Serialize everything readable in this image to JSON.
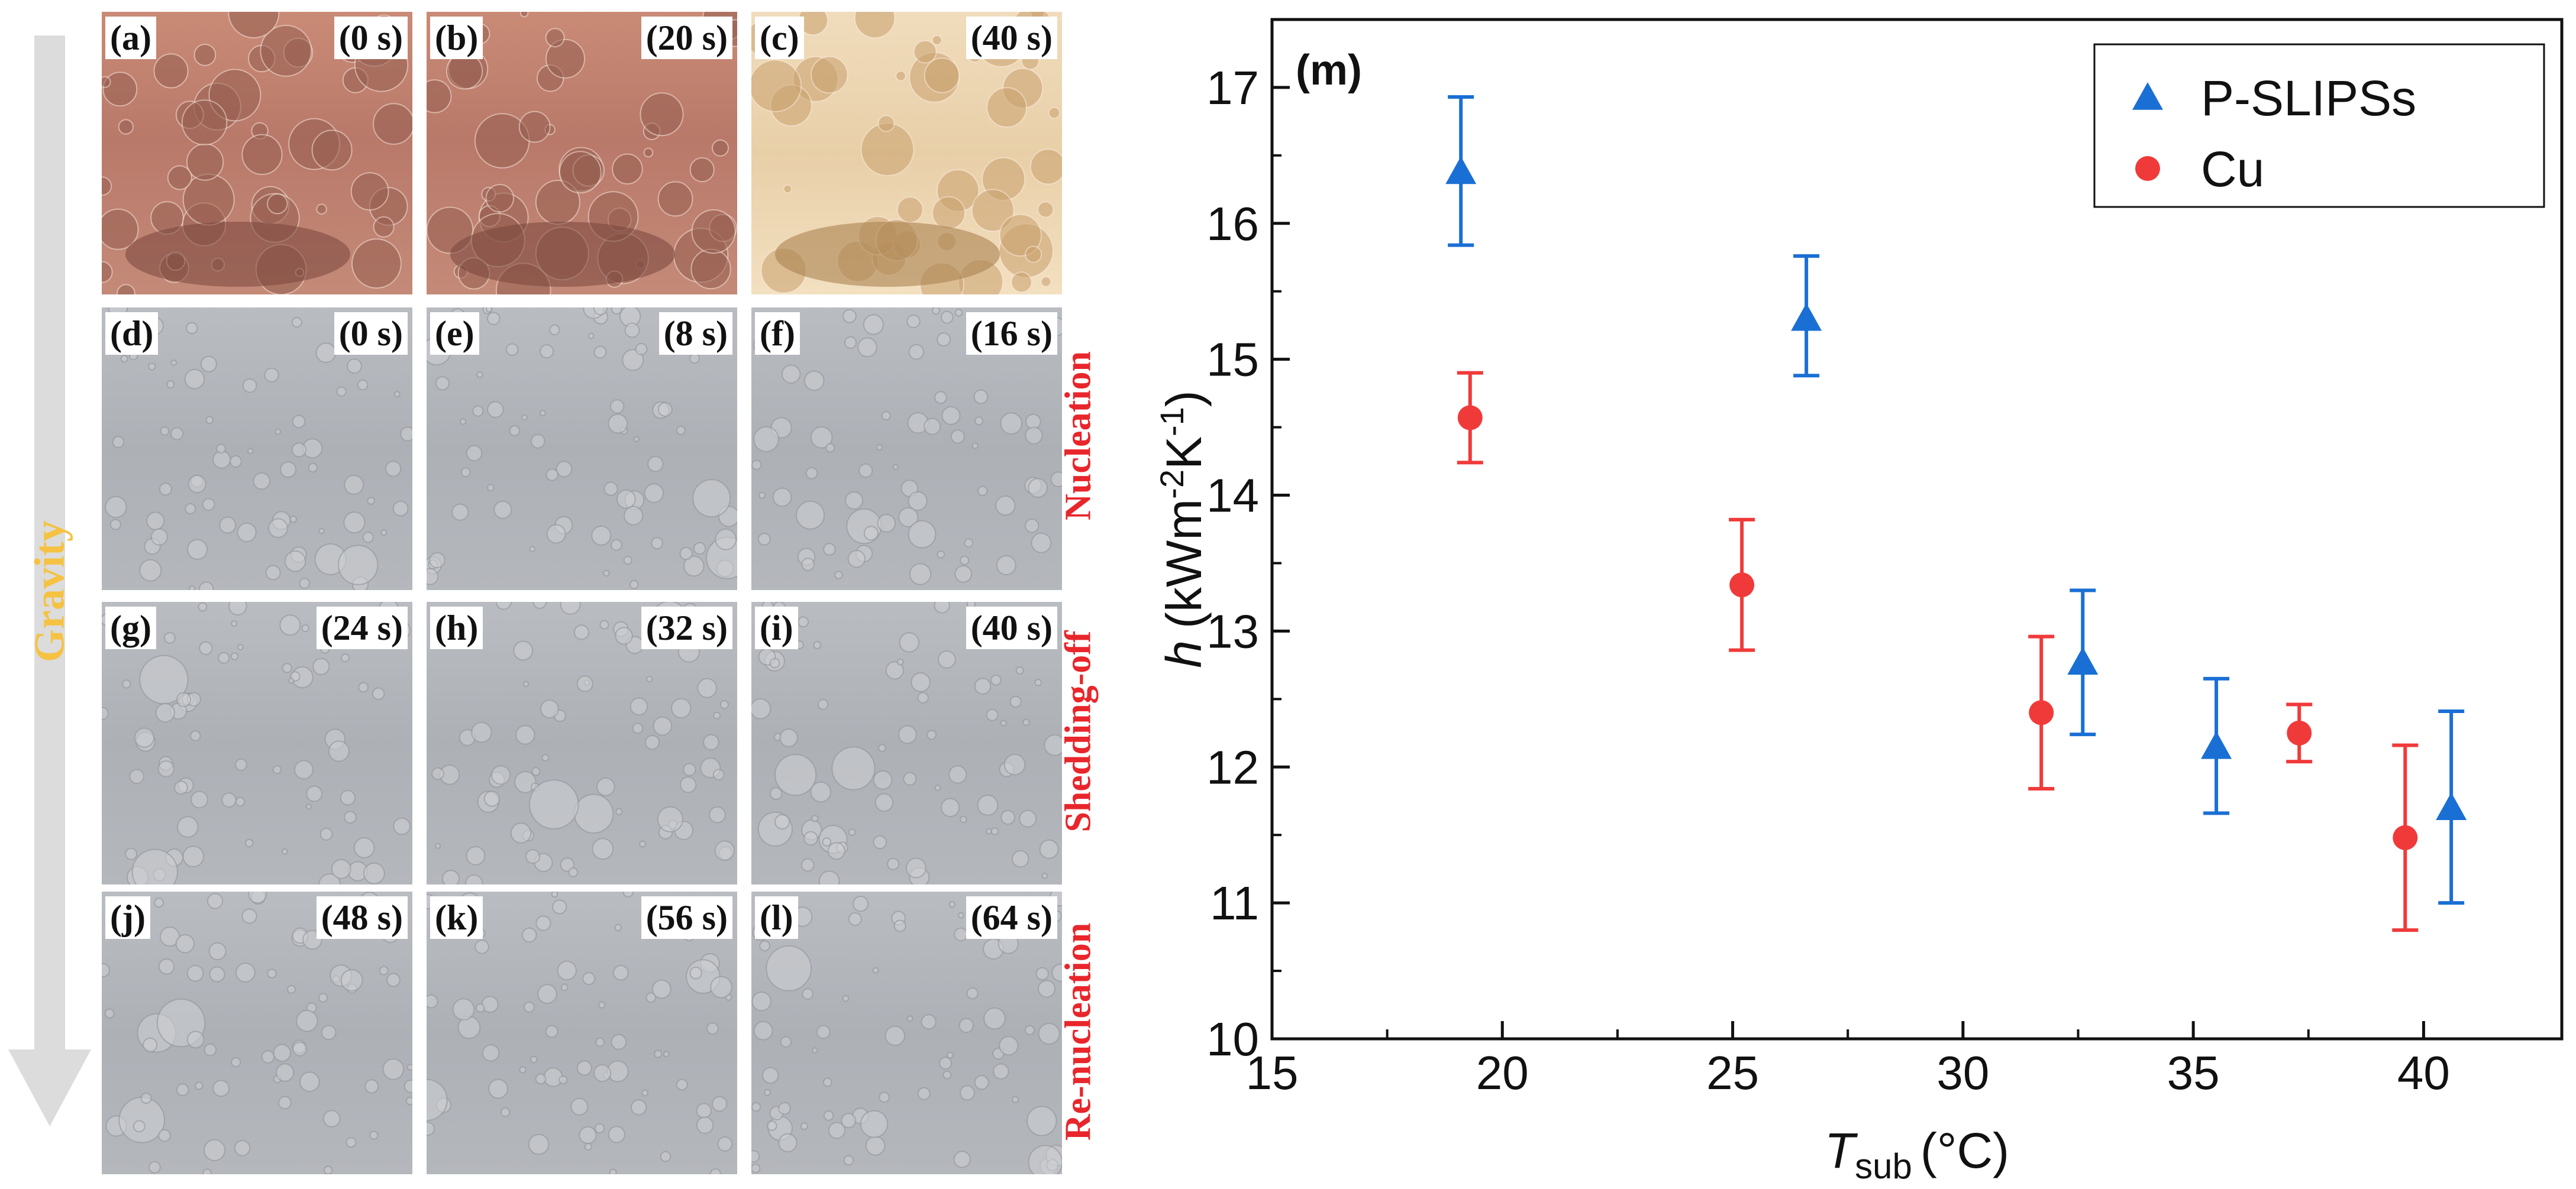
{
  "figure": {
    "gravity_label": "Gravity",
    "row_labels": {
      "nucleation": "Nucleation",
      "shedding": "Shedding-off",
      "renucleation": "Re-nucleation"
    },
    "panels": [
      {
        "letter": "(a)",
        "time": "(0 s)"
      },
      {
        "letter": "(b)",
        "time": "(20 s)"
      },
      {
        "letter": "(c)",
        "time": "(40 s)"
      },
      {
        "letter": "(d)",
        "time": "(0 s)"
      },
      {
        "letter": "(e)",
        "time": "(8 s)"
      },
      {
        "letter": "(f)",
        "time": "(16 s)"
      },
      {
        "letter": "(g)",
        "time": "(24 s)"
      },
      {
        "letter": "(h)",
        "time": "(32 s)"
      },
      {
        "letter": "(i)",
        "time": "(40 s)"
      },
      {
        "letter": "(j)",
        "time": "(48 s)"
      },
      {
        "letter": "(k)",
        "time": "(56 s)"
      },
      {
        "letter": "(l)",
        "time": "(64 s)"
      }
    ]
  },
  "chart_data": {
    "type": "scatter",
    "panel_label": "(m)",
    "xlabel": {
      "symbol": "T",
      "subscript": "sub",
      "unit": "(°C)"
    },
    "ylabel": {
      "symbol": "h",
      "unit_prefix": "(kWm",
      "exp1": "-2",
      "mid": "K",
      "exp2": "-1",
      "close": ")"
    },
    "xlim": [
      15,
      43
    ],
    "ylim": [
      10,
      17.5
    ],
    "xticks": [
      15,
      20,
      25,
      30,
      35,
      40
    ],
    "yticks": [
      10,
      11,
      12,
      13,
      14,
      15,
      16,
      17
    ],
    "legend_position": "top-right",
    "series": [
      {
        "name": "P-SLIPSs",
        "marker": "triangle",
        "color": "#1a6fd4",
        "points": [
          {
            "x": 19.1,
            "y": 16.38,
            "err_low": 15.84,
            "err_high": 16.93
          },
          {
            "x": 26.6,
            "y": 15.3,
            "err_low": 14.88,
            "err_high": 15.76
          },
          {
            "x": 32.6,
            "y": 12.77,
            "err_low": 12.24,
            "err_high": 13.3
          },
          {
            "x": 35.5,
            "y": 12.15,
            "err_low": 11.66,
            "err_high": 12.65
          },
          {
            "x": 40.6,
            "y": 11.7,
            "err_low": 11.0,
            "err_high": 12.41
          }
        ]
      },
      {
        "name": "Cu",
        "marker": "circle",
        "color": "#f03a3a",
        "points": [
          {
            "x": 19.3,
            "y": 14.57,
            "err_low": 14.24,
            "err_high": 14.9
          },
          {
            "x": 25.2,
            "y": 13.34,
            "err_low": 12.86,
            "err_high": 13.82
          },
          {
            "x": 31.7,
            "y": 12.4,
            "err_low": 11.84,
            "err_high": 12.96
          },
          {
            "x": 37.3,
            "y": 12.25,
            "err_low": 12.04,
            "err_high": 12.46
          },
          {
            "x": 39.6,
            "y": 11.48,
            "err_low": 10.8,
            "err_high": 12.16
          }
        ]
      }
    ]
  }
}
